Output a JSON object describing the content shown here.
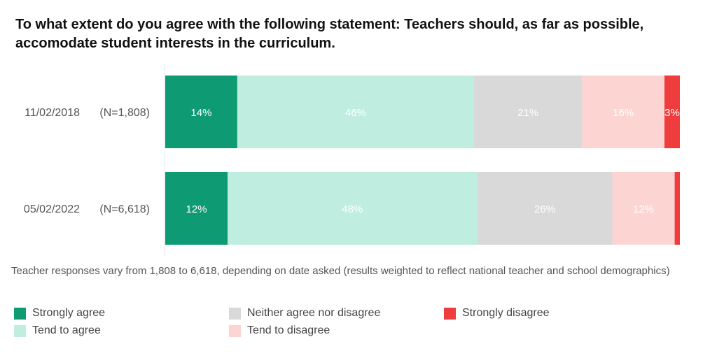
{
  "title": {
    "line1": "To what extent do you agree with the following statement: Teachers should, as far as possible,",
    "line2": "accomodate student interests in the curriculum."
  },
  "footnote": "Teacher responses vary from 1,808 to 6,618, depending on date asked (results weighted to reflect national teacher and school demographics)",
  "chart_data": {
    "type": "bar",
    "orientation": "horizontal",
    "stacked": true,
    "normalized": true,
    "categories": [
      "11/02/2018",
      "05/02/2022"
    ],
    "sample_sizes": [
      "(N=1,808)",
      "(N=6,618)"
    ],
    "series": [
      {
        "name": "Strongly agree",
        "color": "#0e9a72",
        "values": [
          14,
          12
        ],
        "labels": [
          "14%",
          "12%"
        ]
      },
      {
        "name": "Tend to agree",
        "color": "#bfeee1",
        "values": [
          46,
          48
        ],
        "labels": [
          "46%",
          "48%"
        ]
      },
      {
        "name": "Neither agree nor disagree",
        "color": "#d9d9d9",
        "values": [
          21,
          26
        ],
        "labels": [
          "21%",
          "26%"
        ]
      },
      {
        "name": "Tend to disagree",
        "color": "#fcd5d2",
        "values": [
          16,
          12
        ],
        "labels": [
          "16%",
          "12%"
        ]
      },
      {
        "name": "Strongly disagree",
        "color": "#ef3d3d",
        "values": [
          3,
          1
        ],
        "labels": [
          "3%",
          ""
        ]
      }
    ],
    "label_colors": [
      "#ffffff",
      "#ffffff",
      "#ffffff",
      "#ffffff",
      "#ffffff"
    ],
    "legend_position": "bottom",
    "grid": false
  }
}
